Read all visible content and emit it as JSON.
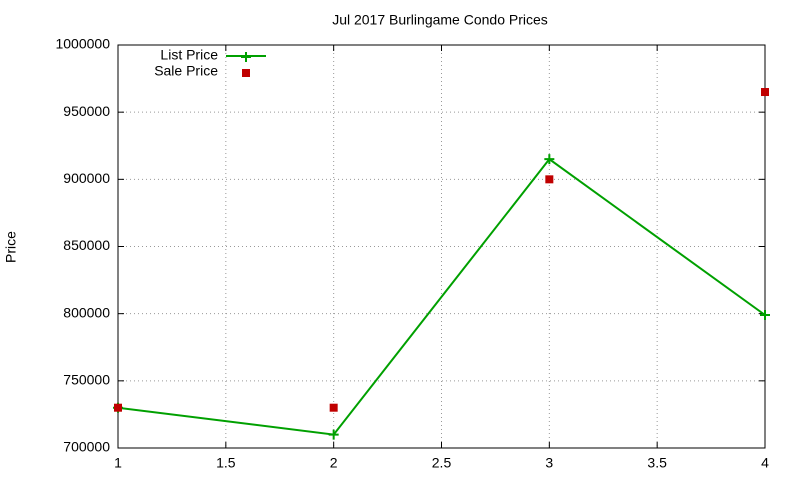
{
  "chart_data": {
    "type": "line",
    "title": "Jul 2017 Burlingame Condo Prices",
    "y_label": "Price",
    "x": [
      1,
      2,
      3,
      4
    ],
    "series": [
      {
        "name": "List Price",
        "color": "#00a000",
        "style": "linespoints",
        "values": [
          730000,
          710000,
          915000,
          799000
        ]
      },
      {
        "name": "Sale Price",
        "color": "#c00000",
        "style": "points",
        "values": [
          730000,
          730000,
          900000,
          965000
        ]
      }
    ],
    "xlim": [
      1,
      4
    ],
    "xticks": [
      1,
      1.5,
      2,
      2.5,
      3,
      3.5,
      4
    ],
    "ylim": [
      700000,
      1000000
    ],
    "yticks": [
      700000,
      750000,
      800000,
      850000,
      900000,
      950000,
      1000000
    ],
    "grid": true,
    "legend": "upper left"
  }
}
